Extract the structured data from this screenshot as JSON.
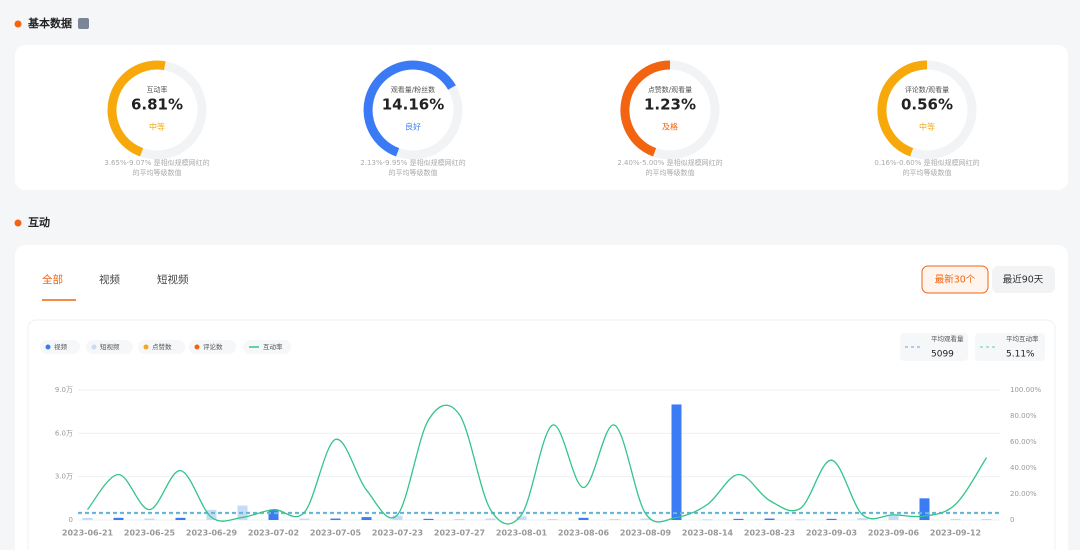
{
  "basic": {
    "title": "基本数据",
    "metrics": [
      {
        "label": "互动率",
        "value": "6.81%",
        "rating": "中等",
        "color": "#f7a90b",
        "note": [
          "3.65%-9.07% 是相似规模网红的",
          "的平均等级数值"
        ]
      },
      {
        "label": "观看量/粉丝数",
        "value": "14.16%",
        "rating": "良好",
        "color": "#3a7bf5",
        "note": [
          "2.13%-9.95% 是相似规模网红的",
          "的平均等级数值"
        ]
      },
      {
        "label": "点赞数/观看量",
        "value": "1.23%",
        "rating": "及格",
        "color": "#f2640f",
        "note": [
          "2.40%-5.00% 是相似规模网红的",
          "的平均等级数值"
        ]
      },
      {
        "label": "评论数/观看量",
        "value": "0.56%",
        "rating": "中等",
        "color": "#f7a90b",
        "note": [
          "0.16%-0.60% 是相似规模网红的",
          "的平均等级数值"
        ]
      }
    ]
  },
  "interaction": {
    "title": "互动",
    "tabs": [
      "全部",
      "视频",
      "短视频"
    ],
    "ranges": [
      "最新30个",
      "最近90天"
    ]
  },
  "chart_data": {
    "type": "combo",
    "categories": [
      "2023-06-21",
      null,
      "2023-06-25",
      null,
      "2023-06-29",
      null,
      "2023-07-02",
      null,
      "2023-07-05",
      null,
      "2023-07-23",
      null,
      "2023-07-27",
      null,
      "2023-08-01",
      null,
      "2023-08-06",
      null,
      "2023-08-09",
      null,
      "2023-08-14",
      null,
      "2023-08-23",
      null,
      "2023-09-03",
      null,
      "2023-09-06",
      null,
      "2023-09-12",
      null
    ],
    "series": [
      {
        "name": "视频",
        "type": "bar",
        "color": "#3b7cf6",
        "values": [
          null,
          1500,
          null,
          1500,
          null,
          null,
          7000,
          null,
          1000,
          2000,
          null,
          800,
          null,
          null,
          null,
          null,
          1500,
          null,
          null,
          80000,
          null,
          800,
          1000,
          null,
          800,
          null,
          null,
          15000,
          null,
          null
        ]
      },
      {
        "name": "短视频",
        "type": "bar",
        "color": "#c6dbf7",
        "values": [
          1500,
          null,
          1000,
          null,
          7000,
          10000,
          null,
          1000,
          null,
          null,
          3000,
          null,
          700,
          1000,
          2500,
          700,
          null,
          700,
          1000,
          null,
          500,
          null,
          null,
          500,
          null,
          1200,
          3000,
          null,
          800,
          700
        ]
      },
      {
        "name": "点赞数",
        "type": "bar",
        "color": "#f5a623",
        "values": [
          null,
          null,
          null,
          null,
          null,
          null,
          null,
          null,
          null,
          null,
          null,
          null,
          null,
          null,
          null,
          null,
          null,
          null,
          null,
          null,
          null,
          null,
          null,
          null,
          null,
          null,
          null,
          null,
          null,
          null
        ]
      },
      {
        "name": "评论数",
        "type": "bar",
        "color": "#f2640f",
        "values": [
          null,
          null,
          null,
          null,
          null,
          null,
          null,
          null,
          null,
          null,
          null,
          null,
          null,
          null,
          null,
          null,
          null,
          null,
          null,
          null,
          null,
          null,
          null,
          null,
          null,
          null,
          null,
          null,
          null,
          null
        ]
      },
      {
        "name": "互动率",
        "type": "line",
        "axis": "y2",
        "color": "#35c48a",
        "values": [
          8,
          35,
          8,
          38,
          2,
          2,
          8,
          6,
          62,
          23,
          4,
          77,
          81,
          8,
          4,
          73,
          25,
          73,
          5,
          2,
          12,
          35,
          15,
          9,
          46,
          4,
          4,
          3,
          12,
          48
        ]
      }
    ],
    "averages": [
      {
        "name": "平均观看量",
        "value": 5099,
        "axis": "y",
        "color": "#6a9cf6"
      },
      {
        "name": "平均互动率",
        "value": 5.11,
        "label": "5.11%",
        "axis": "y2",
        "color": "#5fd0a8"
      }
    ],
    "ylim": [
      0,
      90000
    ],
    "yticks": [
      0,
      {
        "value": 30000,
        "label": "3.0万"
      },
      {
        "value": 60000,
        "label": "6.0万"
      },
      {
        "value": 90000,
        "label": "9.0万"
      }
    ],
    "y2lim": [
      0,
      100
    ],
    "y2ticks": [
      0,
      {
        "value": 20,
        "label": "20.00%"
      },
      {
        "value": 40,
        "label": "40.00%"
      },
      {
        "value": 60,
        "label": "60.00%"
      },
      {
        "value": 80,
        "label": "80.00%"
      },
      {
        "value": 100,
        "label": "100.00%"
      }
    ],
    "grid": true
  }
}
